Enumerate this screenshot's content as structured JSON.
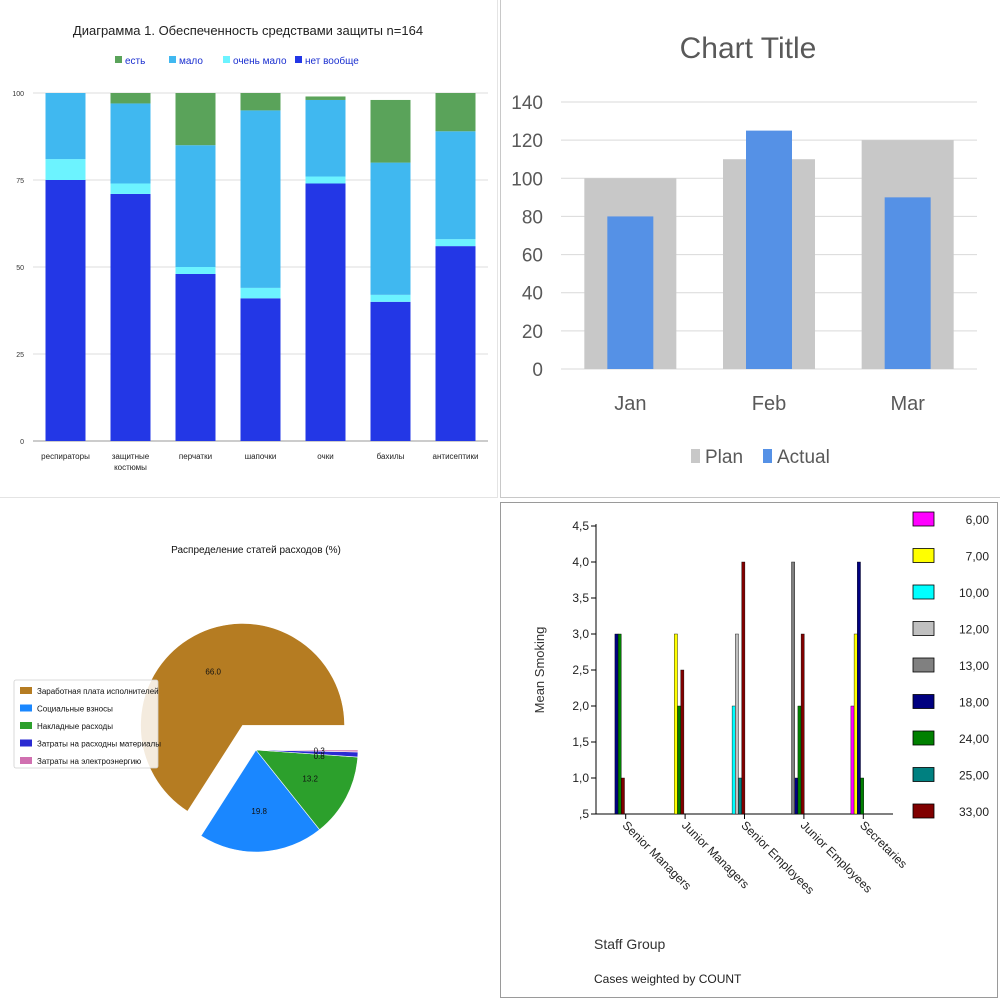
{
  "chart_data": [
    {
      "type": "bar",
      "stacked": true,
      "title": "Диаграмма 1. Обеспеченность средствами защиты n=164",
      "categories": [
        "респираторы",
        "защитные костюмы",
        "перчатки",
        "шапочки",
        "очки",
        "бахилы",
        "антисептики"
      ],
      "category_lines": [
        [
          "респираторы"
        ],
        [
          "защитные",
          "костюмы"
        ],
        [
          "перчатки"
        ],
        [
          "шапочки"
        ],
        [
          "очки"
        ],
        [
          "бахилы"
        ],
        [
          "антисептики"
        ]
      ],
      "series": [
        {
          "name": "нет вообще",
          "values": [
            75,
            71,
            48,
            41,
            74,
            40,
            56
          ],
          "color": "#2337e6"
        },
        {
          "name": "очень мало",
          "values": [
            6,
            3,
            2,
            3,
            2,
            2,
            2
          ],
          "color": "#6cf3ff"
        },
        {
          "name": "мало",
          "values": [
            19,
            23,
            35,
            51,
            22,
            38,
            31
          ],
          "color": "#40b8f0"
        },
        {
          "name": "есть",
          "values": [
            0,
            3,
            15,
            5,
            1,
            18,
            11
          ],
          "color": "#5aa35a"
        }
      ],
      "legend_order": [
        3,
        2,
        1,
        0
      ],
      "ylim": [
        0,
        100
      ],
      "yticks": [
        0,
        25,
        50,
        75,
        100
      ],
      "grid": true,
      "legend": "top"
    },
    {
      "type": "bar",
      "title": "Chart Title",
      "categories": [
        "Jan",
        "Feb",
        "Mar"
      ],
      "series": [
        {
          "name": "Plan",
          "values": [
            100,
            110,
            120
          ],
          "color": "#c8c8c8"
        },
        {
          "name": "Actual",
          "values": [
            80,
            125,
            90
          ],
          "color": "#5591e6"
        }
      ],
      "ylim": [
        0,
        140
      ],
      "yticks": [
        0,
        20,
        40,
        60,
        80,
        100,
        120,
        140
      ],
      "grid": true,
      "legend": "bottom"
    },
    {
      "type": "pie",
      "title": "Распределение статей расходов (%)",
      "slices": [
        {
          "label": "Заработная плата исполнителей",
          "value": 66.0,
          "display": "66.0",
          "color": "#b57c22",
          "explode": true
        },
        {
          "label": "Социальные взносы",
          "value": 19.8,
          "display": "19.8",
          "color": "#1a87ff",
          "explode": false
        },
        {
          "label": "Накладные расходы",
          "value": 13.2,
          "display": "13.2",
          "color": "#2ca02c",
          "explode": false
        },
        {
          "label": "Затраты на расходны материалы",
          "value": 0.8,
          "display": "0.8",
          "color": "#2a2ad2",
          "explode": false
        },
        {
          "label": "Затраты на электроэнергию",
          "value": 0.3,
          "display": "0.3",
          "color": "#d070b0",
          "explode": false
        }
      ],
      "legend": "left"
    },
    {
      "type": "bar",
      "categories": [
        "Senior Managers",
        "Junior Managers",
        "Senior Employees",
        "Junior Employees",
        "Secretaries"
      ],
      "series": [
        {
          "name": "6,00",
          "values": [
            null,
            null,
            null,
            null,
            2.0
          ],
          "color": "#ff00ff"
        },
        {
          "name": "7,00",
          "values": [
            null,
            3.0,
            null,
            null,
            3.0
          ],
          "color": "#ffff00"
        },
        {
          "name": "10,00",
          "values": [
            null,
            null,
            2.0,
            null,
            null
          ],
          "color": "#00ffff"
        },
        {
          "name": "12,00",
          "values": [
            null,
            null,
            3.0,
            null,
            null
          ],
          "color": "#c0c0c0"
        },
        {
          "name": "13,00",
          "values": [
            null,
            null,
            null,
            4.0,
            null
          ],
          "color": "#808080"
        },
        {
          "name": "18,00",
          "values": [
            3.0,
            null,
            null,
            1.0,
            4.0
          ],
          "color": "#000080"
        },
        {
          "name": "24,00",
          "values": [
            3.0,
            2.0,
            null,
            2.0,
            1.0
          ],
          "color": "#008000"
        },
        {
          "name": "25,00",
          "values": [
            null,
            null,
            1.0,
            null,
            null
          ],
          "color": "#008080"
        },
        {
          "name": "33,00",
          "values": [
            1.0,
            2.5,
            4.0,
            3.0,
            null
          ],
          "color": "#800000"
        }
      ],
      "xlabel": "Staff Group",
      "ylabel": "Mean Smoking",
      "footnote": "Cases weighted by COUNT",
      "ylim": [
        0.5,
        4.5
      ],
      "yticks": [
        0.5,
        1.0,
        1.5,
        2.0,
        2.5,
        3.0,
        3.5,
        4.0,
        4.5
      ],
      "ytick_labels": [
        ",5",
        "1,0",
        "1,5",
        "2,0",
        "2,5",
        "3,0",
        "3,5",
        "4,0",
        "4,5"
      ],
      "grid": false,
      "legend": "right"
    }
  ]
}
